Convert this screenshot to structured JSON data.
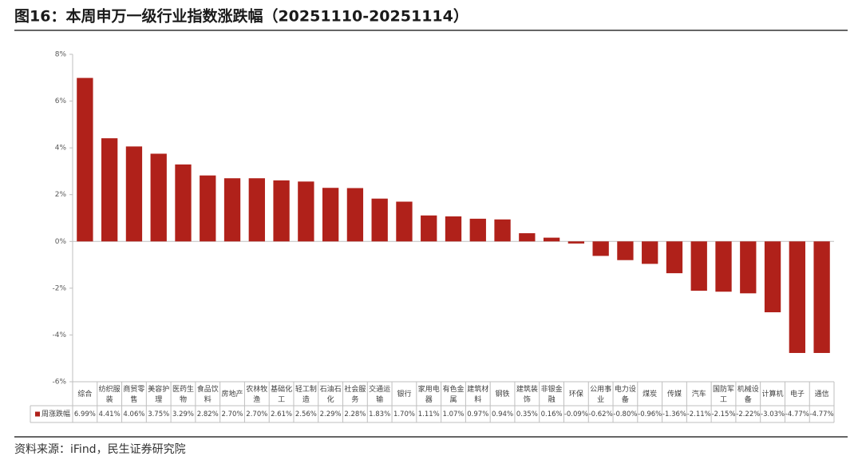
{
  "chart_data": {
    "type": "bar",
    "title": "图16：本周申万一级行业指数涨跌幅（20251110-20251114）",
    "source": "资料来源：iFind，民生证券研究院",
    "categories": [
      "综合",
      "纺织服装",
      "商贸零售",
      "美容护理",
      "医药生物",
      "食品饮料",
      "房地产",
      "农林牧渔",
      "基础化工",
      "轻工制造",
      "石油石化",
      "社会服务",
      "交通运输",
      "银行",
      "家用电器",
      "有色金属",
      "建筑材料",
      "钢铁",
      "建筑装饰",
      "非银金融",
      "环保",
      "公用事业",
      "电力设备",
      "煤炭",
      "传媒",
      "汽车",
      "国防军工",
      "机械设备",
      "计算机",
      "电子",
      "通信"
    ],
    "series": [
      {
        "name": "周涨跌幅",
        "color": "#b0211a",
        "values": [
          6.99,
          4.41,
          4.06,
          3.75,
          3.29,
          2.82,
          2.7,
          2.7,
          2.61,
          2.56,
          2.29,
          2.28,
          1.83,
          1.7,
          1.11,
          1.07,
          0.97,
          0.94,
          0.35,
          0.16,
          -0.09,
          -0.62,
          -0.8,
          -0.96,
          -1.36,
          -2.11,
          -2.15,
          -2.22,
          -3.03,
          -4.77,
          -4.77
        ],
        "value_labels": [
          "6.99%",
          "4.41%",
          "4.06%",
          "3.75%",
          "3.29%",
          "2.82%",
          "2.70%",
          "2.70%",
          "2.61%",
          "2.56%",
          "2.29%",
          "2.28%",
          "1.83%",
          "1.70%",
          "1.11%",
          "1.07%",
          "0.97%",
          "0.94%",
          "0.35%",
          "0.16%",
          "-0.09%",
          "-0.62%",
          "-0.80%",
          "-0.96%",
          "-1.36%",
          "-2.11%",
          "-2.15%",
          "-2.22%",
          "-3.03%",
          "-4.77%",
          "-4.77%"
        ]
      }
    ],
    "ylim": [
      -6,
      8
    ],
    "yticks": [
      {
        "value": -6,
        "label": "-6%"
      },
      {
        "value": -4,
        "label": "-4%"
      },
      {
        "value": -2,
        "label": "-2%"
      },
      {
        "value": 0,
        "label": "0%"
      },
      {
        "value": 2,
        "label": "2%"
      },
      {
        "value": 4,
        "label": "4%"
      },
      {
        "value": 6,
        "label": "6%"
      },
      {
        "value": 8,
        "label": "8%"
      }
    ]
  }
}
